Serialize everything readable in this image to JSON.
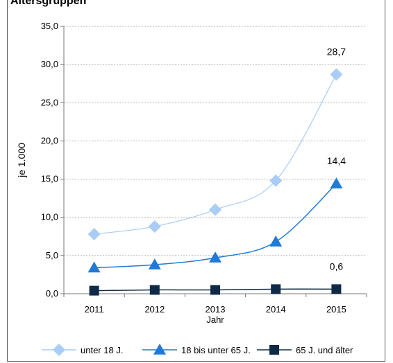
{
  "header": {
    "cut_title": "Altersgruppen"
  },
  "chart_data": {
    "type": "line",
    "title": "",
    "xlabel": "Jahr",
    "ylabel": "je 1.000",
    "x": [
      "2011",
      "2012",
      "2013",
      "2014",
      "2015"
    ],
    "ylim": [
      0,
      35
    ],
    "yticks": [
      "0,0",
      "5,0",
      "10,0",
      "15,0",
      "20,0",
      "25,0",
      "30,0",
      "35,0"
    ],
    "grid": true,
    "legend_position": "bottom",
    "series": [
      {
        "name": "unter 18 J.",
        "values": [
          7.8,
          8.8,
          11.0,
          14.8,
          28.7
        ],
        "marker": "diamond",
        "color": "#a9cdf5",
        "end_label": "28,7"
      },
      {
        "name": "18 bis unter 65 J.",
        "values": [
          3.4,
          3.8,
          4.7,
          6.8,
          14.4
        ],
        "marker": "triangle",
        "color": "#1f7ad9",
        "end_label": "14,4"
      },
      {
        "name": "65 J. und älter",
        "values": [
          0.4,
          0.5,
          0.5,
          0.6,
          0.6
        ],
        "marker": "square",
        "color": "#0e2a47",
        "end_label": "0,6"
      }
    ]
  }
}
